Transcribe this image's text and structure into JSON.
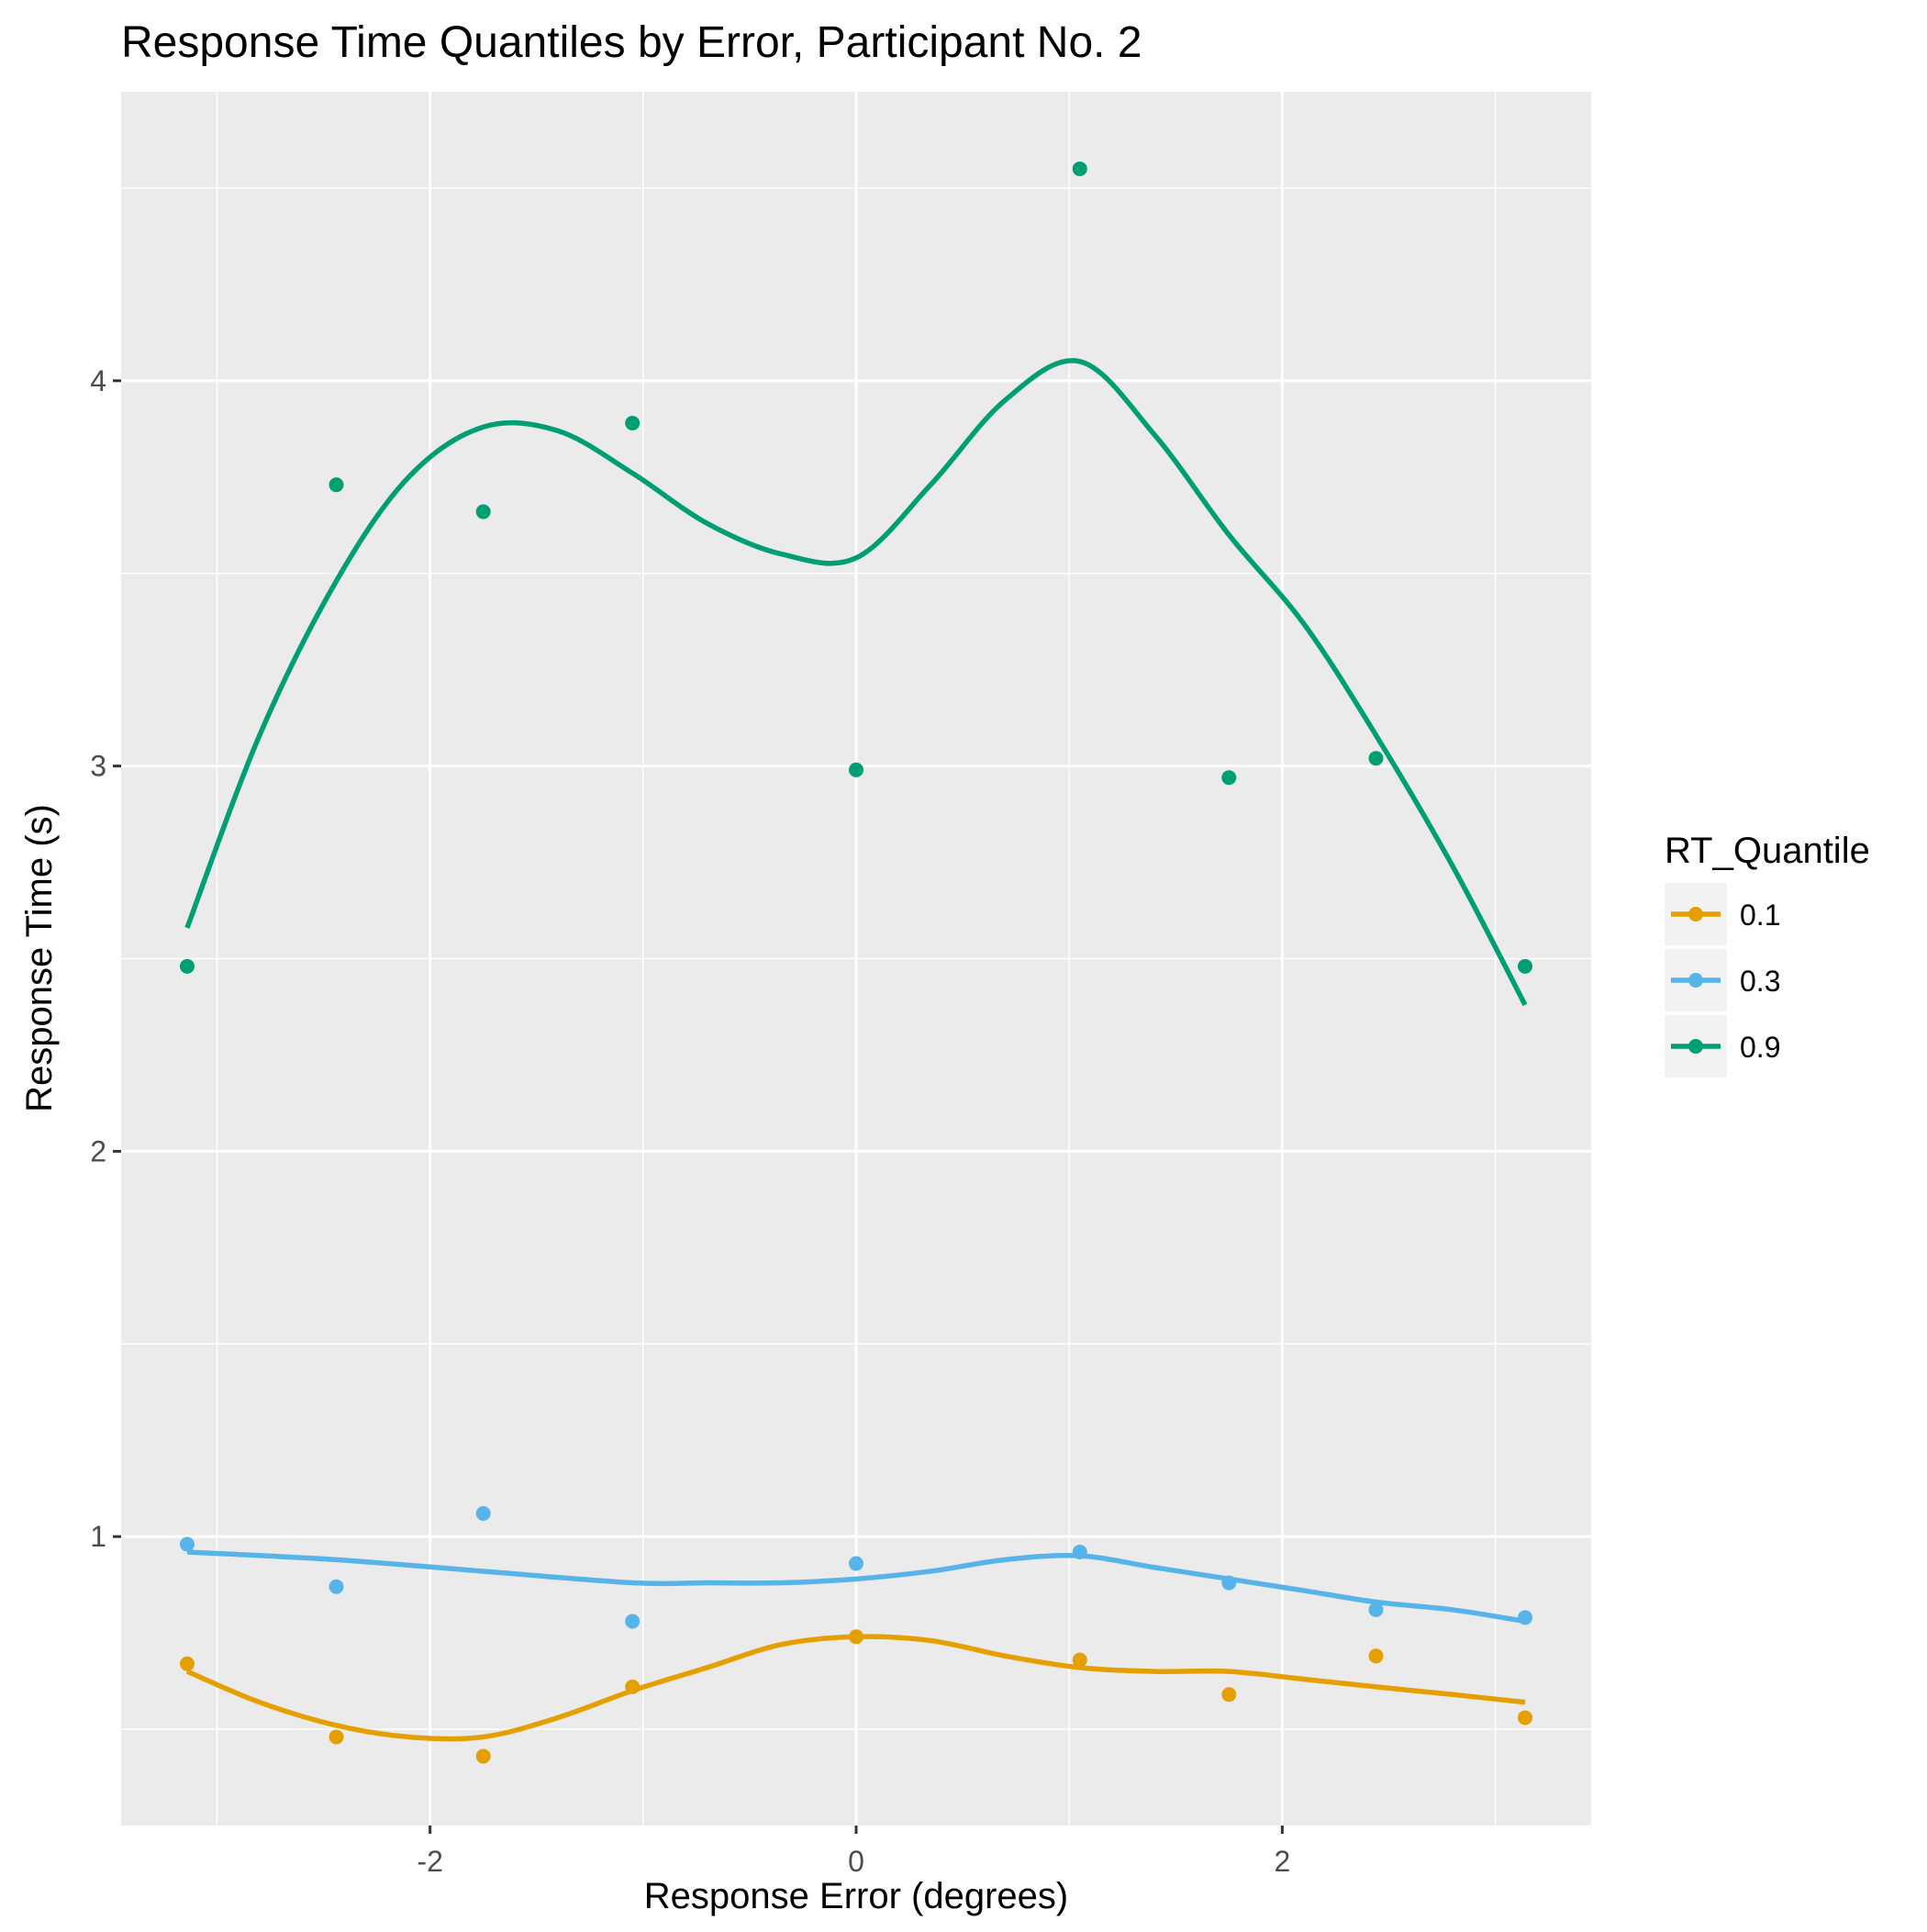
{
  "chart_data": {
    "type": "scatter",
    "title": "Response Time Quantiles by Error, Participant No.  2",
    "xlabel": "Response Error (degrees)",
    "ylabel": "Response Time (s)",
    "xlim": [
      -3.45,
      3.45
    ],
    "ylim": [
      0.25,
      4.75
    ],
    "x_ticks": [
      -2,
      0,
      2
    ],
    "x_tick_labels": [
      "-2",
      "0",
      "2"
    ],
    "x_minor_ticks": [
      -3,
      -1,
      1,
      3
    ],
    "y_ticks": [
      1,
      2,
      3,
      4
    ],
    "y_tick_labels": [
      "1",
      "2",
      "3",
      "4"
    ],
    "y_minor_ticks": [
      0.5,
      1.5,
      2.5,
      3.5,
      4.5
    ],
    "grid": true,
    "legend": {
      "title": "RT_Quantile",
      "position": "right"
    },
    "series": [
      {
        "name": "0.1",
        "color": "#E69F00",
        "points": {
          "x": [
            -3.14,
            -2.44,
            -1.75,
            -1.05,
            0.0,
            1.05,
            1.75,
            2.44,
            3.14
          ],
          "y": [
            0.67,
            0.48,
            0.43,
            0.61,
            0.74,
            0.68,
            0.59,
            0.69,
            0.53
          ]
        },
        "smooth": {
          "x": [
            -3.14,
            -2.8,
            -2.44,
            -2.1,
            -1.75,
            -1.4,
            -1.05,
            -0.7,
            -0.35,
            0.0,
            0.35,
            0.7,
            1.05,
            1.4,
            1.75,
            2.1,
            2.44,
            2.8,
            3.14
          ],
          "y": [
            0.65,
            0.57,
            0.51,
            0.48,
            0.48,
            0.53,
            0.6,
            0.66,
            0.72,
            0.74,
            0.73,
            0.69,
            0.66,
            0.65,
            0.65,
            0.63,
            0.61,
            0.59,
            0.57
          ]
        }
      },
      {
        "name": "0.3",
        "color": "#56B4E9",
        "points": {
          "x": [
            -3.14,
            -2.44,
            -1.75,
            -1.05,
            0.0,
            1.05,
            1.75,
            2.44,
            3.14
          ],
          "y": [
            0.98,
            0.87,
            1.06,
            0.78,
            0.93,
            0.96,
            0.88,
            0.81,
            0.79
          ]
        },
        "smooth": {
          "x": [
            -3.14,
            -2.44,
            -1.75,
            -1.05,
            -0.7,
            -0.35,
            0.0,
            0.35,
            0.7,
            1.05,
            1.4,
            1.75,
            2.1,
            2.44,
            2.8,
            3.14
          ],
          "y": [
            0.96,
            0.94,
            0.91,
            0.88,
            0.88,
            0.88,
            0.89,
            0.91,
            0.94,
            0.95,
            0.92,
            0.89,
            0.86,
            0.83,
            0.81,
            0.78
          ]
        }
      },
      {
        "name": "0.9",
        "color": "#009E73",
        "points": {
          "x": [
            -3.14,
            -2.44,
            -1.75,
            -1.05,
            0.0,
            1.05,
            1.75,
            2.44,
            3.14
          ],
          "y": [
            2.48,
            3.73,
            3.66,
            3.89,
            2.99,
            4.55,
            2.97,
            3.02,
            2.48
          ]
        },
        "smooth": {
          "x": [
            -3.14,
            -2.8,
            -2.44,
            -2.1,
            -1.75,
            -1.4,
            -1.05,
            -0.7,
            -0.35,
            0.0,
            0.35,
            0.7,
            1.05,
            1.4,
            1.75,
            2.1,
            2.44,
            2.8,
            3.14
          ],
          "y": [
            2.58,
            3.08,
            3.48,
            3.75,
            3.88,
            3.87,
            3.76,
            3.63,
            3.55,
            3.54,
            3.73,
            3.95,
            4.05,
            3.86,
            3.6,
            3.37,
            3.08,
            2.74,
            2.38
          ]
        }
      }
    ]
  }
}
